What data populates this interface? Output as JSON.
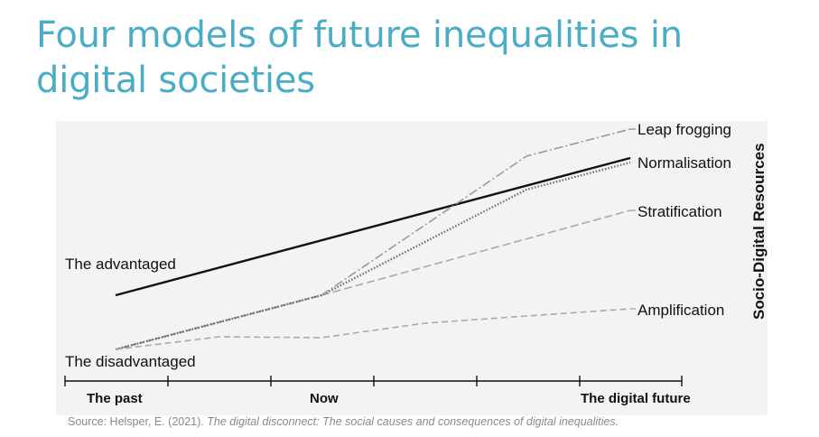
{
  "title": "Four models of future inequalities in digital societies",
  "diagram": {
    "x_ticks": [
      "The past",
      "Now",
      "The digital future"
    ],
    "y_axis_label": "Socio-Digital Resources",
    "start_labels": {
      "advantaged": "The advantaged",
      "disadvantaged": "The disadvantaged"
    },
    "models": [
      {
        "name": "Leap frogging",
        "style": "dash-dot",
        "color": "#9a9a9a"
      },
      {
        "name": "Normalisation",
        "style": "dotted",
        "color": "#777777"
      },
      {
        "name": "Stratification",
        "style": "dashed-long",
        "color": "#aaaaaa"
      },
      {
        "name": "Amplification",
        "style": "dashed",
        "color": "#aaaaaa"
      }
    ],
    "advantaged_line": {
      "style": "solid",
      "color": "#111111"
    }
  },
  "source": {
    "prefix": "Source: Helsper, E. (2021). ",
    "title": "The digital disconnect: The social causes and consequences of digital inequalities."
  }
}
